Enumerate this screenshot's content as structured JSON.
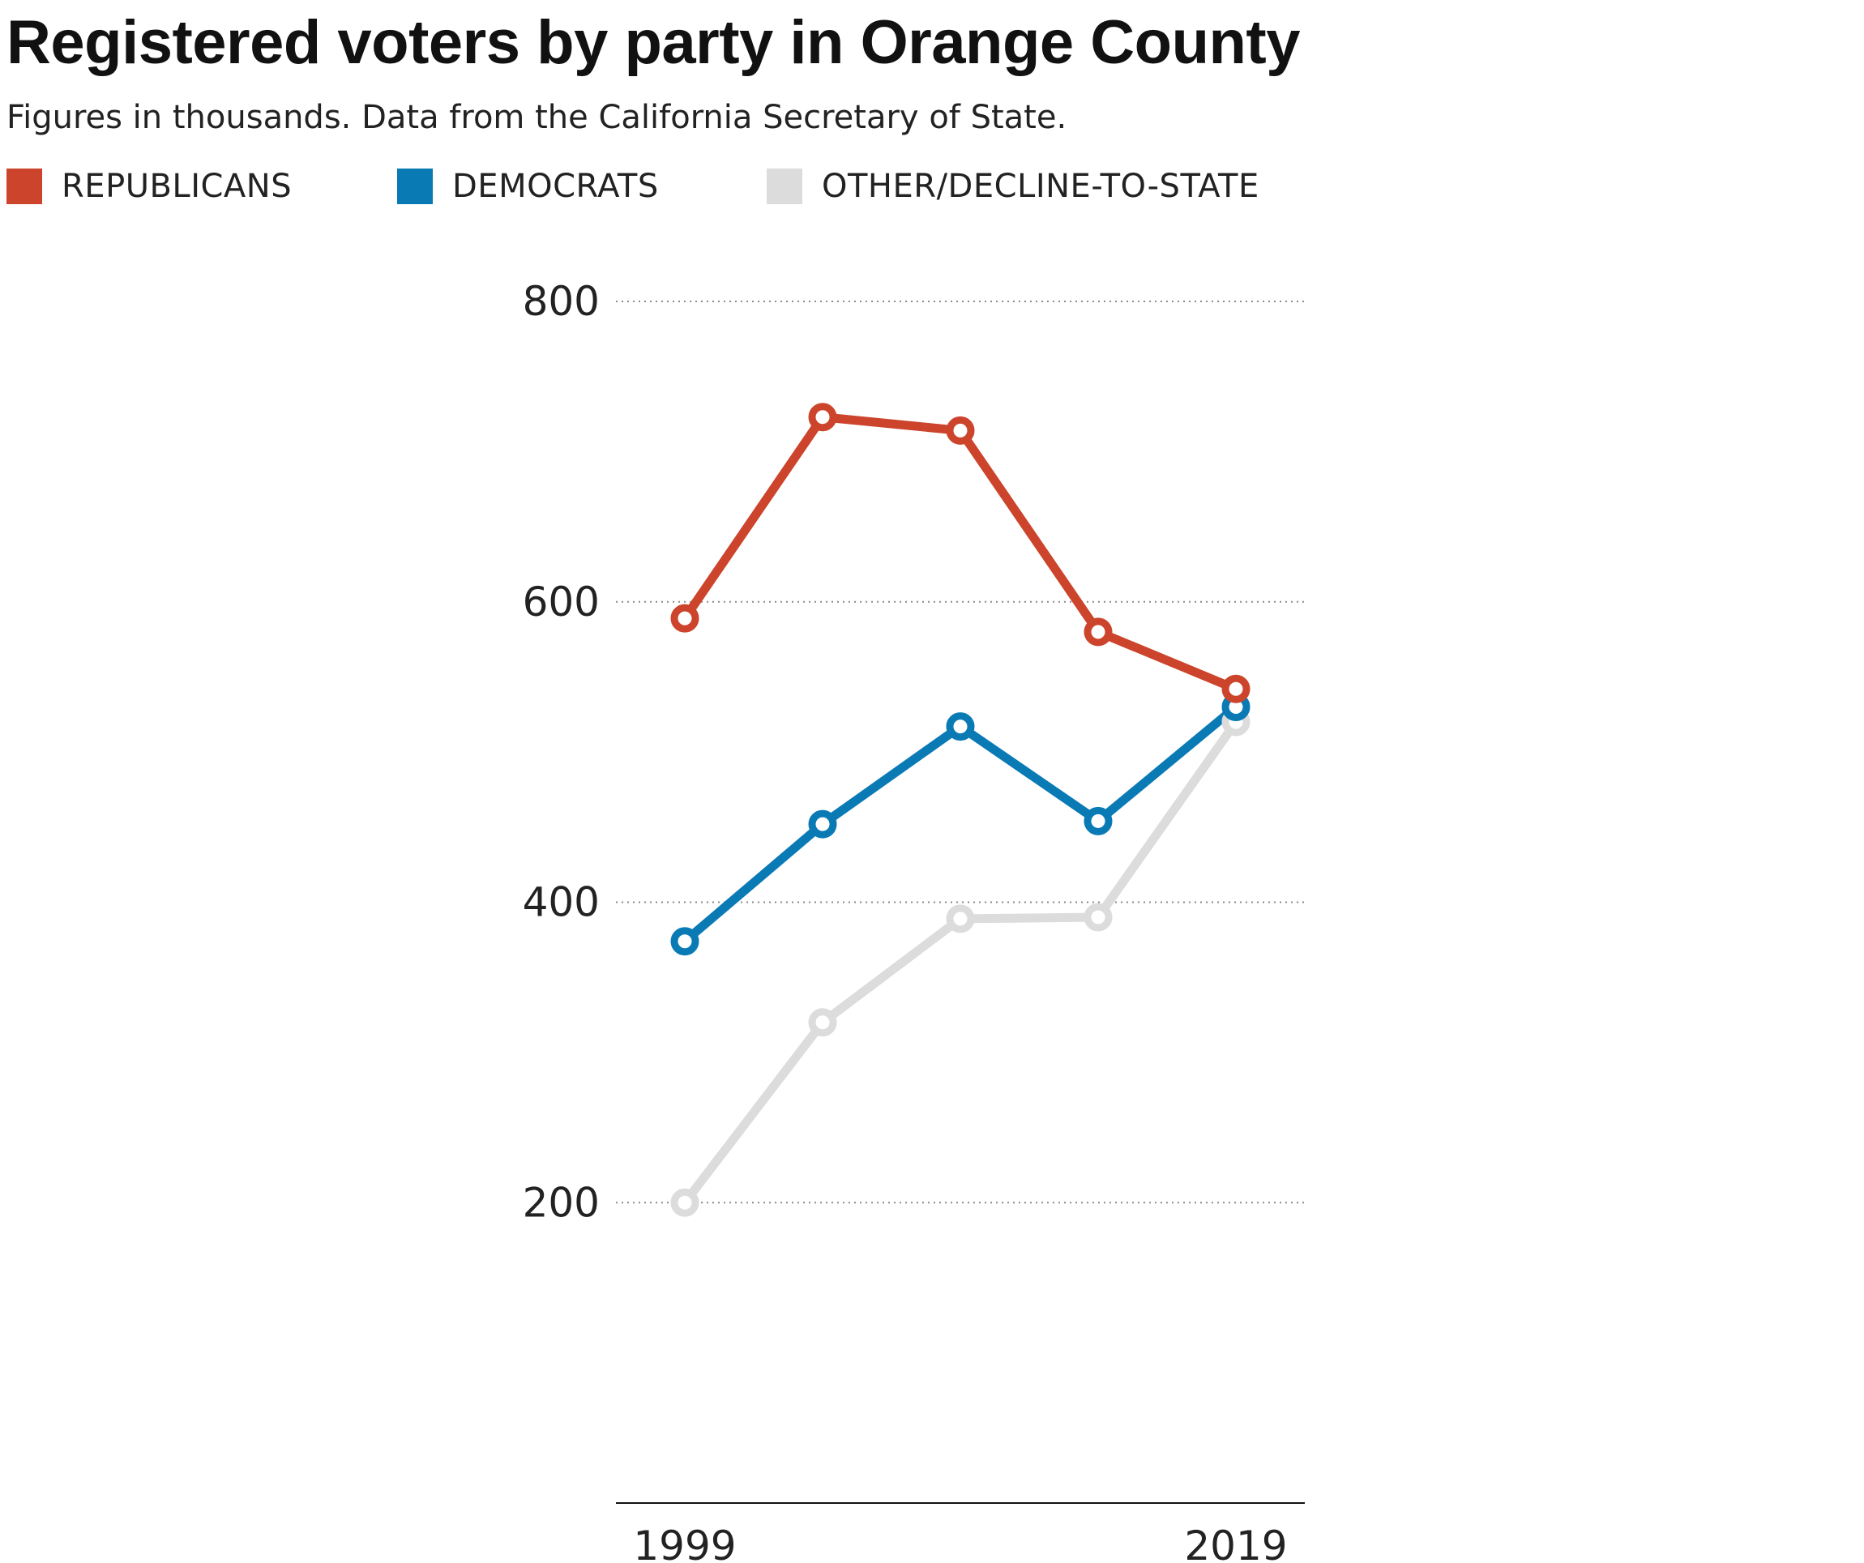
{
  "header": {
    "title": "Registered voters by party in Orange County",
    "subtitle": "Figures in thousands. Data from the California Secretary of State."
  },
  "legend": {
    "items": [
      {
        "label": "REPUBLICANS",
        "color": "#cc442b"
      },
      {
        "label": "DEMOCRATS",
        "color": "#0a7ab5"
      },
      {
        "label": "OTHER/DECLINE-TO-STATE",
        "color": "#dcdcdc"
      }
    ]
  },
  "chart_data": {
    "type": "line",
    "title": "Registered voters by party in Orange County",
    "subtitle": "Figures in thousands. Data from the California Secretary of State.",
    "xlabel": "",
    "ylabel": "",
    "x": [
      1999,
      2004,
      2009,
      2014,
      2019
    ],
    "x_tick_labels": [
      "1999",
      "2019"
    ],
    "y_ticks": [
      200,
      400,
      600,
      800
    ],
    "y_tick_labels": [
      "200",
      "400",
      "600",
      "800"
    ],
    "ylim": [
      0,
      800
    ],
    "grid": "horizontal dotted",
    "legend_position": "top-left",
    "series": [
      {
        "name": "REPUBLICANS",
        "color": "#cc442b",
        "values": [
          589,
          723,
          714,
          580,
          542
        ]
      },
      {
        "name": "DEMOCRATS",
        "color": "#0a7ab5",
        "values": [
          374,
          452,
          517,
          454,
          530
        ]
      },
      {
        "name": "OTHER/DECLINE-TO-STATE",
        "color": "#dcdcdc",
        "values": [
          200,
          320,
          389,
          390,
          520
        ]
      }
    ]
  }
}
